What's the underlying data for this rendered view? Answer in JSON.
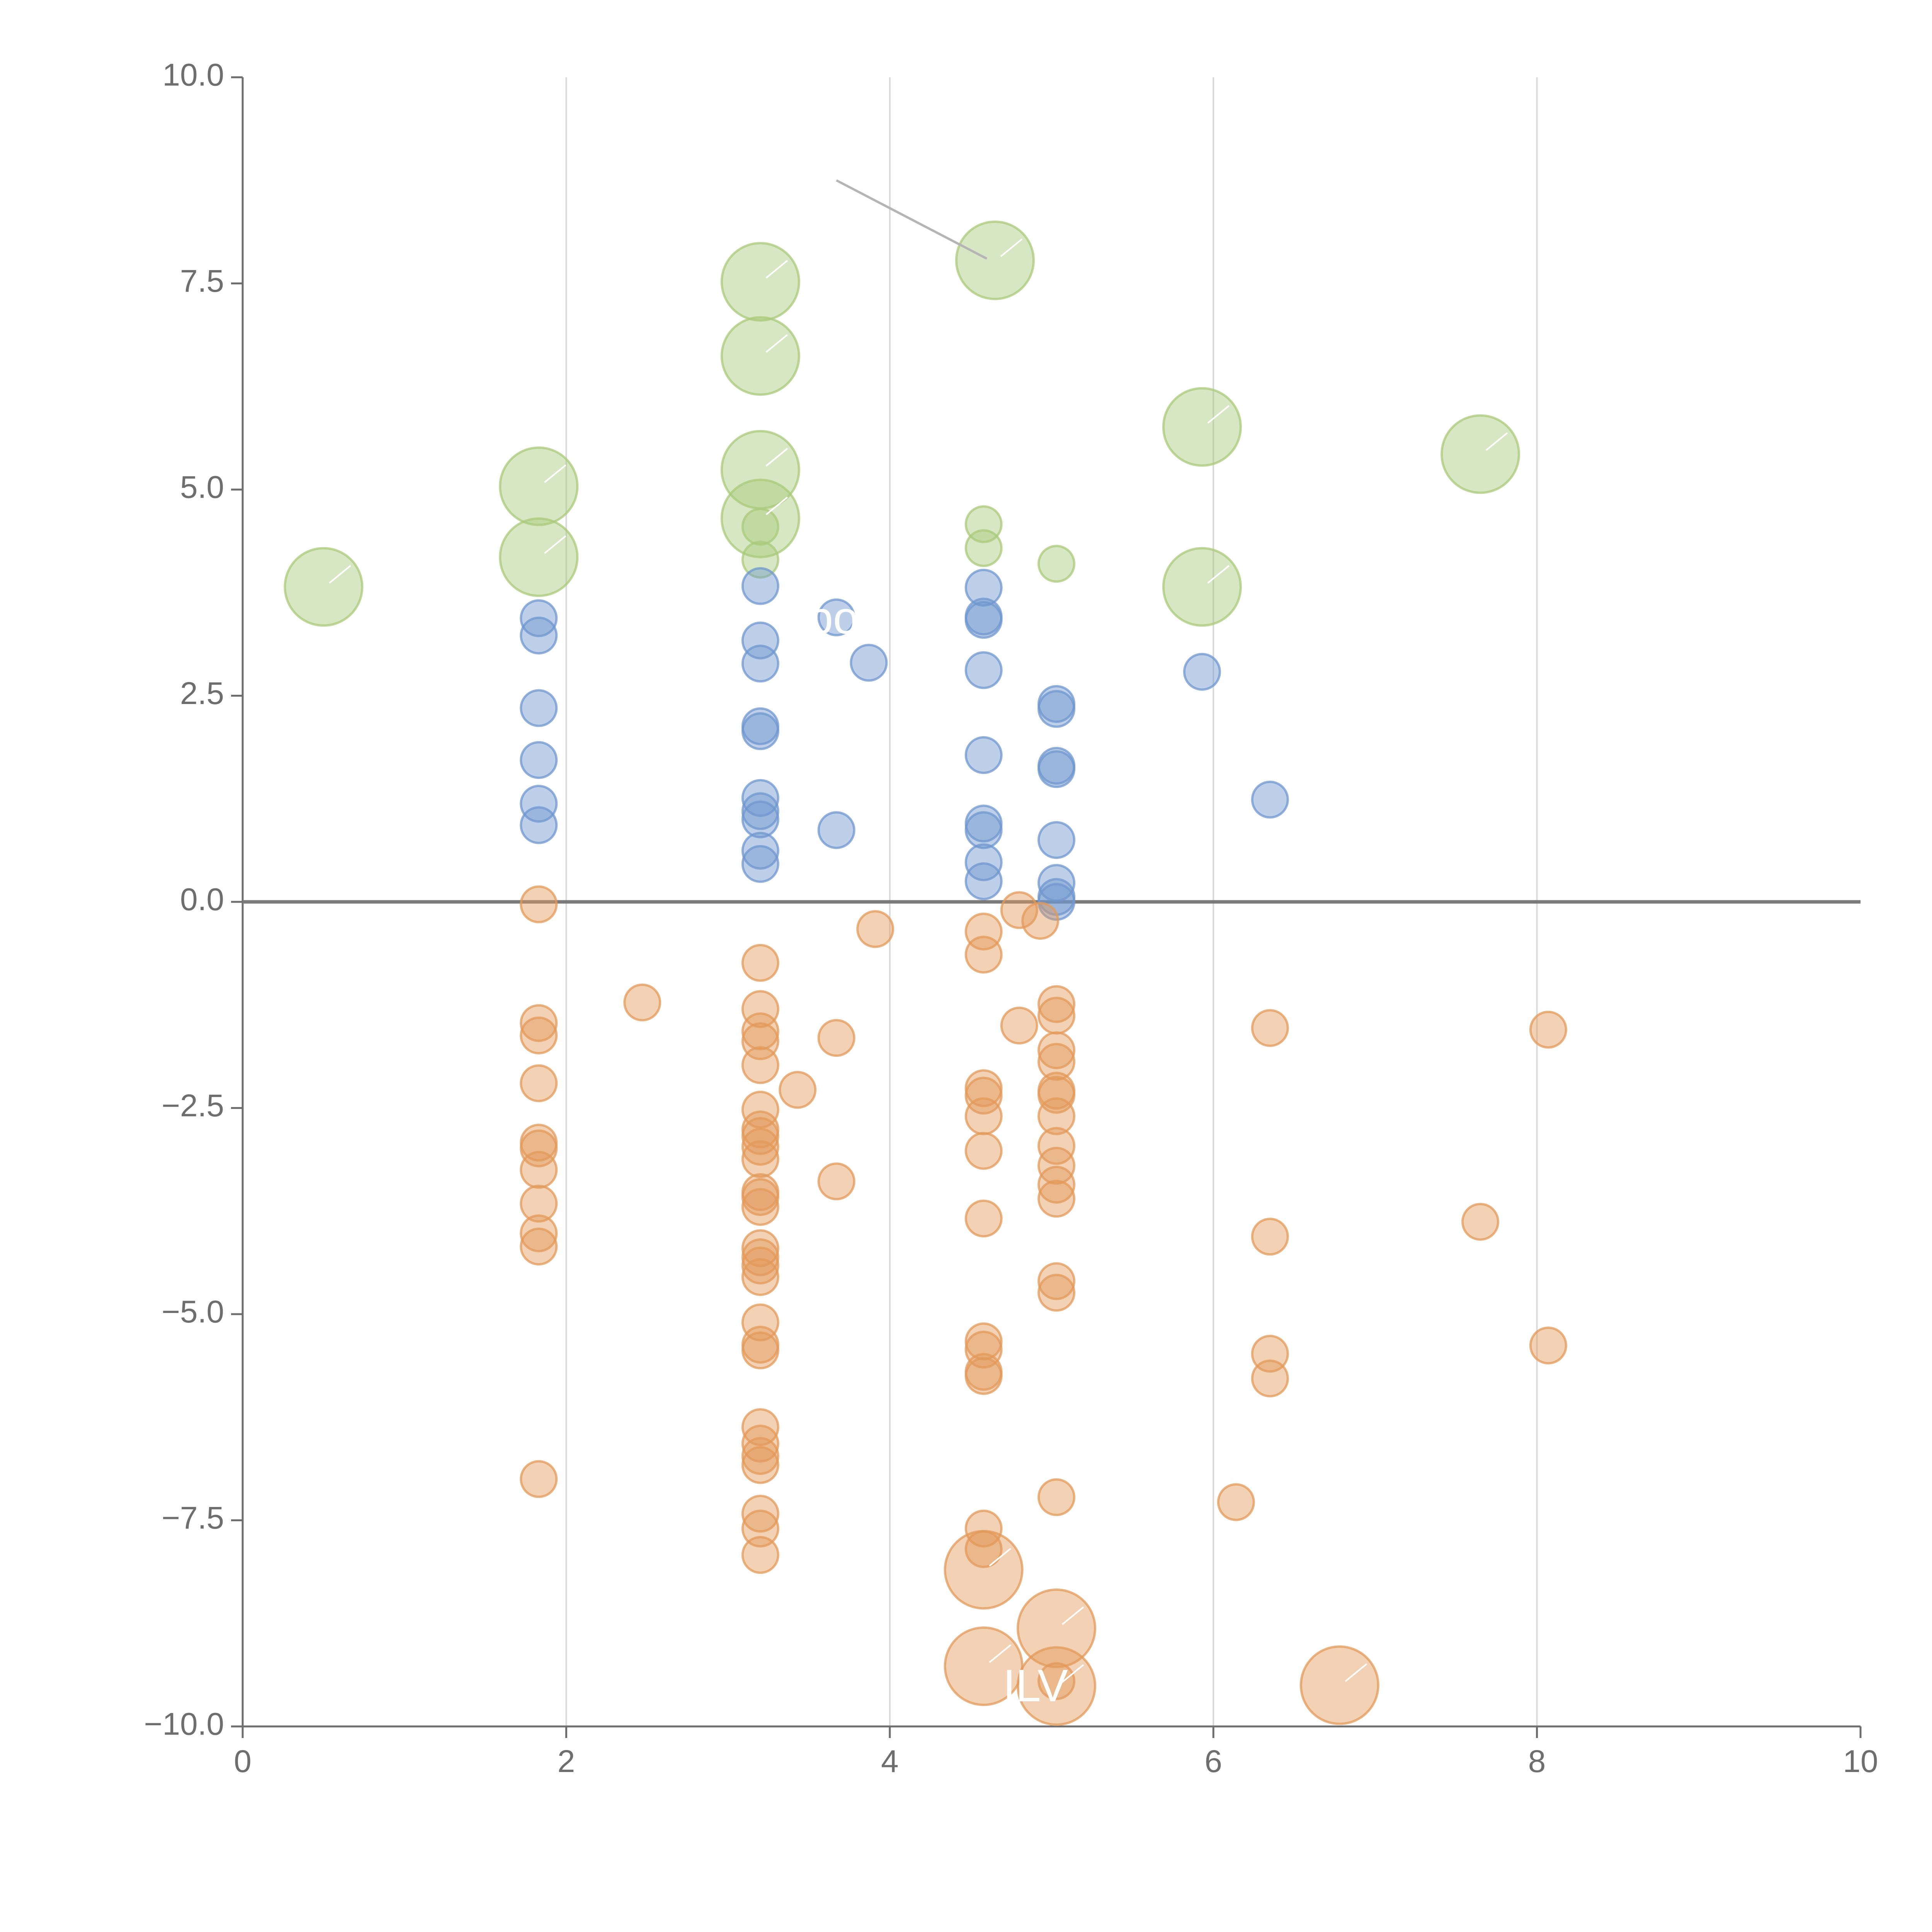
{
  "colors": {
    "positive": "#6f97cf",
    "negative": "#e39a5a",
    "high": "#a9c97a",
    "leader": "#b5b5b5",
    "axis": "#6e6e6e"
  },
  "chart_data": {
    "type": "scatter",
    "title": "",
    "xlabel": "",
    "ylabel": "",
    "xlim": [
      0,
      10
    ],
    "ylim": [
      -10,
      10
    ],
    "x_ticks": [
      0,
      2,
      4,
      6,
      8,
      10
    ],
    "y_ticks": [
      -10,
      -7.5,
      -5,
      -2.5,
      0,
      2.5,
      5,
      7.5,
      10
    ],
    "x_tick_labels": [
      "0",
      "2",
      "4",
      "6",
      "8",
      "10"
    ],
    "y_tick_labels": [
      "−10.0",
      "−7.5",
      "−5.0",
      "−2.5",
      "0.0",
      "2.5",
      "5.0",
      "7.5",
      "10.0"
    ],
    "grid_x": true,
    "reference_line_y": 0,
    "legend": "none",
    "annotations": [
      {
        "text": "ILV",
        "x": 4.9,
        "y": -9.55
      },
      {
        "text": "pos",
        "x": 3.72,
        "y": 3.4
      }
    ],
    "leader_line": {
      "from": [
        3.67,
        8.75
      ],
      "to": [
        4.6,
        7.8
      ]
    },
    "series": [
      {
        "name": "high",
        "color_key": "high",
        "size": "large",
        "points": [
          [
            0.5,
            3.82
          ],
          [
            1.83,
            5.04
          ],
          [
            1.83,
            4.18
          ],
          [
            3.2,
            7.52
          ],
          [
            3.2,
            6.62
          ],
          [
            3.2,
            5.24
          ],
          [
            3.2,
            4.65
          ],
          [
            4.65,
            7.78
          ],
          [
            5.93,
            5.76
          ],
          [
            5.93,
            3.82
          ],
          [
            7.65,
            5.43
          ]
        ]
      },
      {
        "name": "high-small",
        "color_key": "high",
        "size": "small",
        "points": [
          [
            3.2,
            4.55
          ],
          [
            3.2,
            4.15
          ],
          [
            4.58,
            4.58
          ],
          [
            4.58,
            4.29
          ],
          [
            5.03,
            4.1
          ]
        ]
      },
      {
        "name": "positive",
        "color_key": "positive",
        "size": "small",
        "points": [
          [
            1.83,
            3.44
          ],
          [
            1.83,
            3.23
          ],
          [
            1.83,
            2.35
          ],
          [
            1.83,
            1.72
          ],
          [
            1.83,
            1.19
          ],
          [
            1.83,
            0.93
          ],
          [
            3.2,
            3.83
          ],
          [
            3.2,
            3.17
          ],
          [
            3.2,
            2.89
          ],
          [
            3.2,
            2.13
          ],
          [
            3.2,
            2.07
          ],
          [
            3.2,
            1.26
          ],
          [
            3.2,
            1.1
          ],
          [
            3.2,
            1.0
          ],
          [
            3.2,
            0.62
          ],
          [
            3.2,
            0.46
          ],
          [
            3.67,
            3.45
          ],
          [
            3.67,
            0.87
          ],
          [
            3.87,
            2.9
          ],
          [
            4.58,
            3.81
          ],
          [
            4.58,
            3.46
          ],
          [
            4.58,
            3.42
          ],
          [
            4.58,
            2.81
          ],
          [
            4.58,
            1.78
          ],
          [
            4.58,
            0.95
          ],
          [
            4.58,
            0.87
          ],
          [
            4.58,
            0.48
          ],
          [
            4.58,
            0.25
          ],
          [
            5.03,
            2.4
          ],
          [
            5.03,
            2.34
          ],
          [
            5.03,
            1.65
          ],
          [
            5.03,
            1.61
          ],
          [
            5.03,
            0.75
          ],
          [
            5.03,
            0.23
          ],
          [
            5.03,
            0.06
          ],
          [
            5.03,
            0.0
          ],
          [
            5.93,
            2.79
          ],
          [
            6.35,
            1.24
          ]
        ]
      },
      {
        "name": "negative",
        "color_key": "negative",
        "size": "small",
        "points": [
          [
            1.83,
            -0.03
          ],
          [
            1.83,
            -1.47
          ],
          [
            1.83,
            -1.62
          ],
          [
            1.83,
            -2.2
          ],
          [
            1.83,
            -2.92
          ],
          [
            1.83,
            -2.99
          ],
          [
            1.83,
            -3.25
          ],
          [
            1.83,
            -3.66
          ],
          [
            1.83,
            -4.02
          ],
          [
            1.83,
            -4.18
          ],
          [
            1.83,
            -7.0
          ],
          [
            2.47,
            -1.22
          ],
          [
            3.2,
            -0.74
          ],
          [
            3.2,
            -1.3
          ],
          [
            3.2,
            -1.57
          ],
          [
            3.2,
            -1.69
          ],
          [
            3.2,
            -1.98
          ],
          [
            3.2,
            -2.52
          ],
          [
            3.2,
            -2.76
          ],
          [
            3.2,
            -2.84
          ],
          [
            3.2,
            -2.97
          ],
          [
            3.2,
            -3.12
          ],
          [
            3.2,
            -3.52
          ],
          [
            3.2,
            -3.58
          ],
          [
            3.2,
            -3.7
          ],
          [
            3.2,
            -4.2
          ],
          [
            3.2,
            -4.31
          ],
          [
            3.2,
            -4.41
          ],
          [
            3.2,
            -4.55
          ],
          [
            3.2,
            -5.1
          ],
          [
            3.2,
            -5.37
          ],
          [
            3.2,
            -5.44
          ],
          [
            3.2,
            -6.37
          ],
          [
            3.2,
            -6.57
          ],
          [
            3.2,
            -6.72
          ],
          [
            3.2,
            -6.83
          ],
          [
            3.2,
            -7.42
          ],
          [
            3.2,
            -7.6
          ],
          [
            3.2,
            -7.92
          ],
          [
            3.43,
            -2.28
          ],
          [
            3.67,
            -1.65
          ],
          [
            3.67,
            -3.39
          ],
          [
            3.91,
            -0.33
          ],
          [
            4.58,
            -0.36
          ],
          [
            4.58,
            -0.64
          ],
          [
            4.58,
            -2.26
          ],
          [
            4.58,
            -2.35
          ],
          [
            4.58,
            -2.6
          ],
          [
            4.58,
            -3.02
          ],
          [
            4.58,
            -3.84
          ],
          [
            4.58,
            -5.33
          ],
          [
            4.58,
            -5.43
          ],
          [
            4.58,
            -5.7
          ],
          [
            4.58,
            -5.75
          ],
          [
            4.58,
            -7.6
          ],
          [
            4.58,
            -7.85
          ],
          [
            4.8,
            -0.1
          ],
          [
            4.8,
            -1.5
          ],
          [
            4.93,
            -0.23
          ],
          [
            5.03,
            -1.24
          ],
          [
            5.03,
            -1.38
          ],
          [
            5.03,
            -1.8
          ],
          [
            5.03,
            -1.94
          ],
          [
            5.03,
            -2.29
          ],
          [
            5.03,
            -2.34
          ],
          [
            5.03,
            -2.6
          ],
          [
            5.03,
            -2.96
          ],
          [
            5.03,
            -3.2
          ],
          [
            5.03,
            -3.43
          ],
          [
            5.03,
            -3.6
          ],
          [
            5.03,
            -4.6
          ],
          [
            5.03,
            -4.74
          ],
          [
            5.03,
            -7.22
          ],
          [
            5.03,
            -9.45
          ],
          [
            6.14,
            -7.28
          ],
          [
            6.35,
            -1.53
          ],
          [
            6.35,
            -4.06
          ],
          [
            6.35,
            -5.48
          ],
          [
            6.35,
            -5.78
          ],
          [
            7.65,
            -3.88
          ],
          [
            8.07,
            -1.55
          ],
          [
            8.07,
            -5.38
          ]
        ]
      },
      {
        "name": "negative-large",
        "color_key": "negative",
        "size": "large",
        "points": [
          [
            4.58,
            -8.1
          ],
          [
            4.58,
            -9.27
          ],
          [
            5.03,
            -8.81
          ],
          [
            5.03,
            -9.51
          ],
          [
            6.78,
            -9.5
          ]
        ]
      }
    ]
  }
}
